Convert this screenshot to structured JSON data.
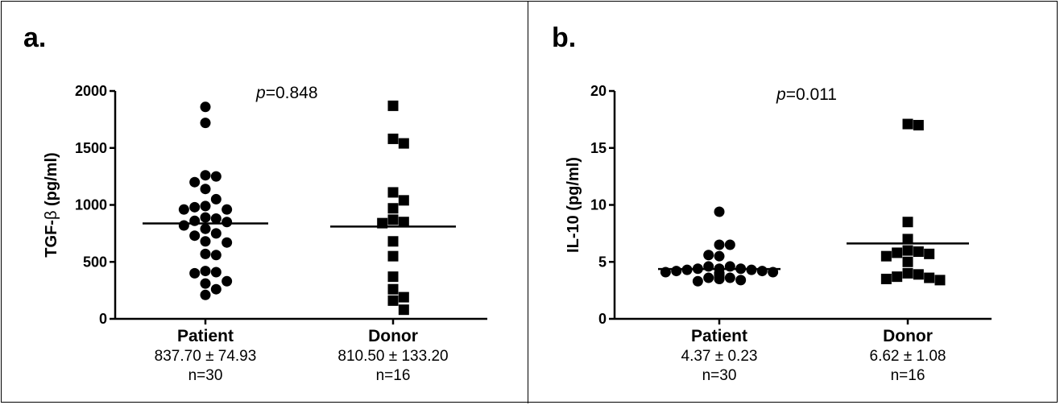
{
  "chart_data": [
    {
      "type": "scatter",
      "panel_label": "a.",
      "ylabel_prefix": "TGF-",
      "ylabel_greek": "β",
      "ylabel_suffix": " (pg/ml)",
      "ylim": [
        0,
        2000
      ],
      "yticks": [
        0,
        500,
        1000,
        1500,
        2000
      ],
      "pvalue_prefix": "p",
      "pvalue_text": "=0.848",
      "categories": [
        "Patient",
        "Donor"
      ],
      "stats": [
        "837.70 ± 74.93",
        "810.50 ± 133.20"
      ],
      "counts": [
        "n=30",
        "n=16"
      ],
      "means": [
        837.7,
        810.5
      ],
      "series": [
        {
          "marker": "circle",
          "values": [
            1860,
            1720,
            1260,
            1250,
            1200,
            1140,
            1050,
            990,
            980,
            960,
            960,
            890,
            880,
            860,
            850,
            820,
            790,
            750,
            730,
            680,
            670,
            570,
            560,
            420,
            410,
            400,
            330,
            310,
            260,
            210
          ]
        },
        {
          "marker": "square",
          "values": [
            1870,
            1580,
            1540,
            1110,
            1040,
            970,
            870,
            850,
            840,
            680,
            550,
            370,
            260,
            190,
            160,
            80
          ]
        }
      ]
    },
    {
      "type": "scatter",
      "panel_label": "b.",
      "ylabel_prefix": "IL-10",
      "ylabel_greek": "",
      "ylabel_suffix": " (pg/ml)",
      "ylim": [
        0,
        20
      ],
      "yticks": [
        0,
        5,
        10,
        15,
        20
      ],
      "pvalue_prefix": "p",
      "pvalue_text": "=0.011",
      "categories": [
        "Patient",
        "Donor"
      ],
      "stats": [
        "4.37 ± 0.23",
        "6.62 ± 1.08"
      ],
      "counts": [
        "n=30",
        "n=16"
      ],
      "means": [
        4.37,
        6.62
      ],
      "series": [
        {
          "marker": "circle",
          "values": [
            9.4,
            6.5,
            6.5,
            5.6,
            5.5,
            4.6,
            4.6,
            4.4,
            4.4,
            4.4,
            4.3,
            4.3,
            4.2,
            4.2,
            4.1,
            4.1,
            4.0,
            4.0,
            3.9,
            3.9,
            3.8,
            3.8,
            3.7,
            3.7,
            3.6,
            3.6,
            3.5,
            3.5,
            3.4,
            3.3
          ]
        },
        {
          "marker": "square",
          "values": [
            17.1,
            17.0,
            8.5,
            7.0,
            6.0,
            5.9,
            5.8,
            5.7,
            5.5,
            5.0,
            4.0,
            3.9,
            3.7,
            3.6,
            3.5,
            3.4
          ]
        }
      ]
    }
  ]
}
